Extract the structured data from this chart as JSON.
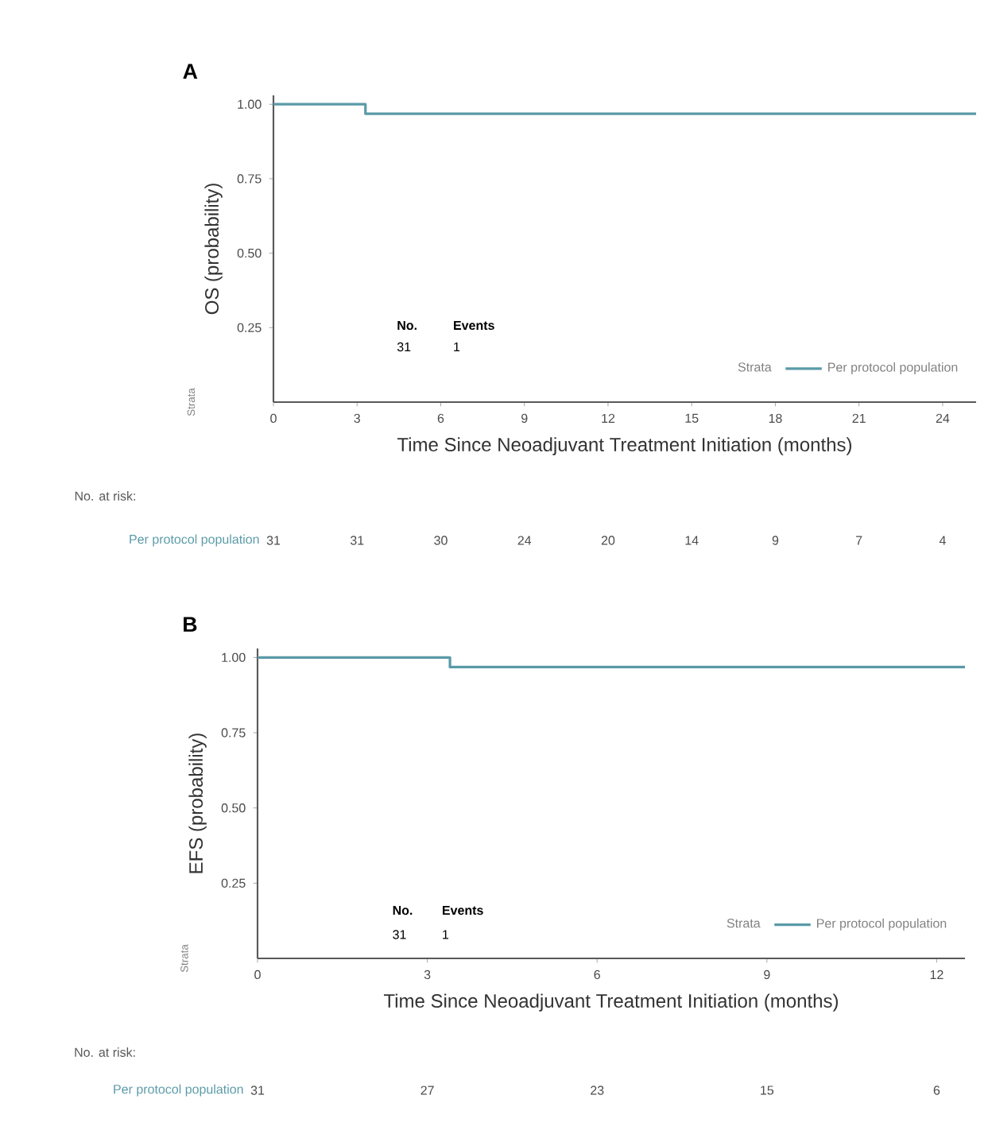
{
  "chart_data": [
    {
      "type": "step",
      "title": "A",
      "xlabel": "Time Since Neoadjuvant Treatment Initiation (months)",
      "ylabel": "OS (probability)",
      "legend_title": "Strata",
      "legend": "bottom right",
      "grid": false,
      "series": [
        {
          "name": "Per protocol population",
          "color": "#5a9aa8",
          "x": [
            0,
            3.3,
            25.2
          ],
          "values": [
            1,
            0.968,
            0.968
          ]
        }
      ],
      "xlim": [
        0,
        25.2
      ],
      "xticks": [
        0,
        3,
        6,
        9,
        12,
        15,
        18,
        21,
        24
      ],
      "ylim": [
        0,
        1.03
      ],
      "yticks": [
        {
          "value": 0.25,
          "label": "0.25"
        },
        {
          "value": 0.5,
          "label": "0.50"
        },
        {
          "value": 0.75,
          "label": "0.75"
        },
        {
          "value": 1,
          "label": "1.00"
        }
      ],
      "annotations": [
        "No.",
        "Events",
        "31",
        "1",
        "No. at risk:",
        "31",
        "31",
        "30",
        "24",
        "20",
        "14",
        "9",
        "7",
        "4"
      ]
    },
    {
      "type": "step",
      "title": "B",
      "xlabel": "Time Since Neoadjuvant Treatment Initiation (months)",
      "ylabel": "EFS (probability)",
      "legend_title": "Strata",
      "legend": "bottom right",
      "grid": false,
      "series": [
        {
          "name": "Per protocol population",
          "color": "#5a9aa8",
          "x": [
            0,
            3.4,
            12.5
          ],
          "values": [
            1,
            0.968,
            0.968
          ]
        }
      ],
      "xlim": [
        0,
        12.5
      ],
      "xticks": [
        0,
        3,
        6,
        9,
        12
      ],
      "ylim": [
        0,
        1.03
      ],
      "yticks": [
        {
          "value": 0.25,
          "label": "0.25"
        },
        {
          "value": 0.5,
          "label": "0.50"
        },
        {
          "value": 0.75,
          "label": "0.75"
        },
        {
          "value": 1,
          "label": "1.00"
        }
      ],
      "annotations": [
        "No.",
        "Events",
        "31",
        "1",
        "No. at risk:",
        "31",
        "27",
        "23",
        "15",
        "6"
      ]
    }
  ]
}
